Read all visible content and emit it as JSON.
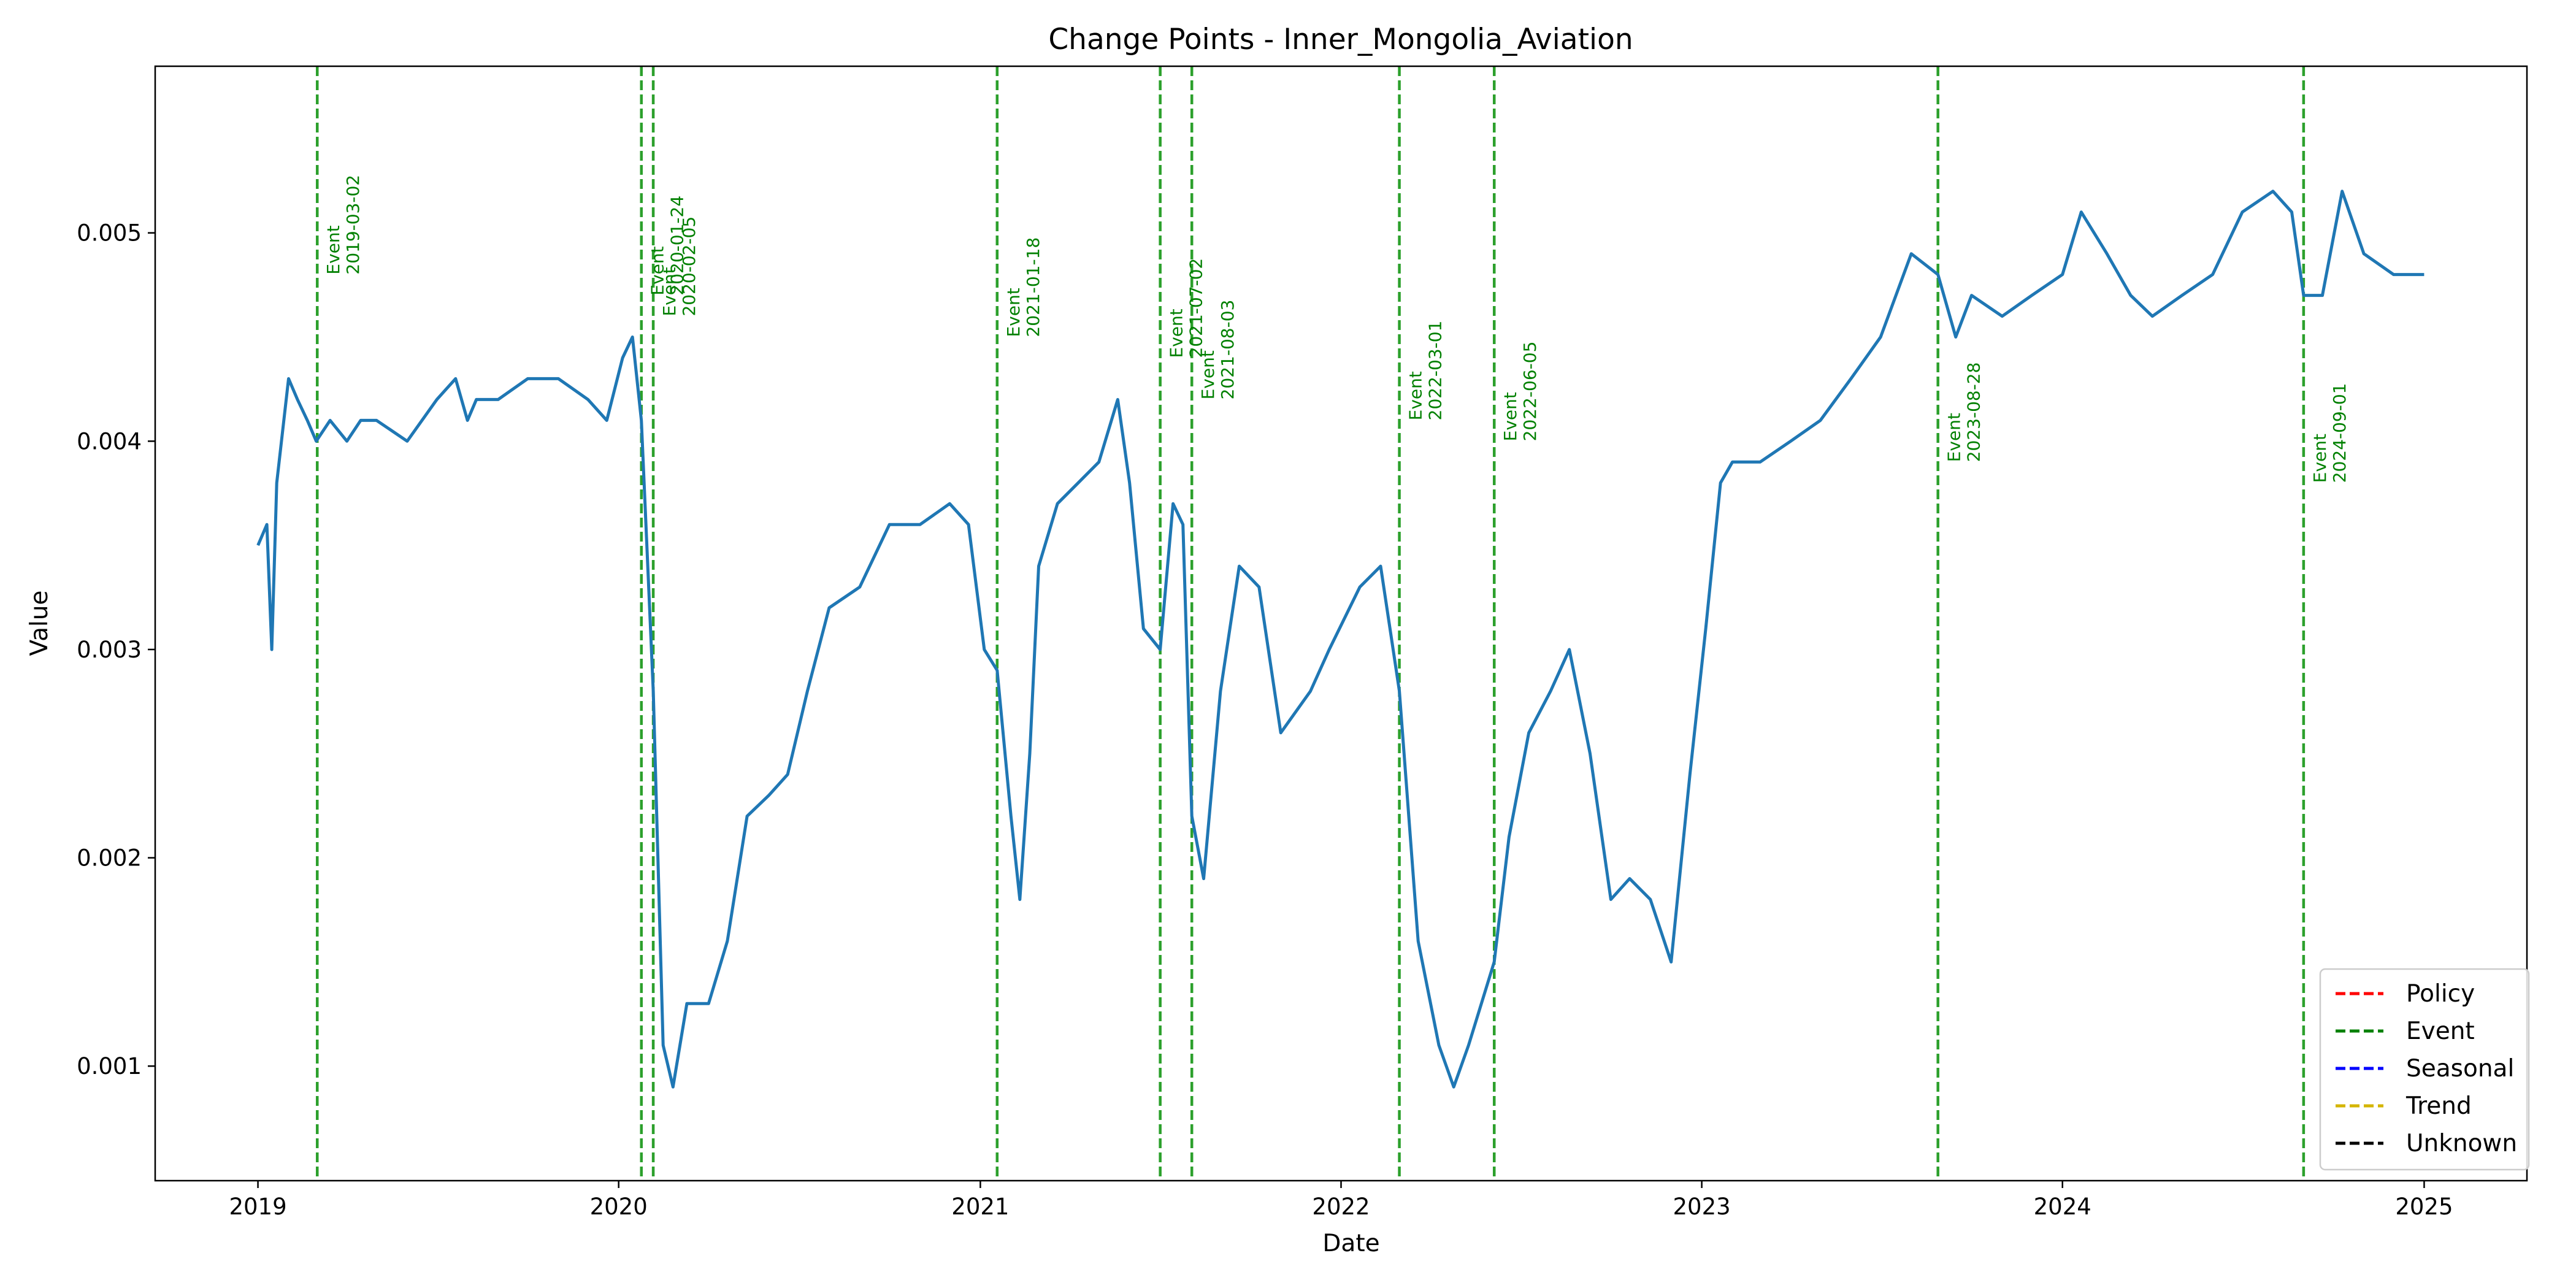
{
  "chart_data": {
    "type": "line",
    "title": "Change Points - Inner_Mongolia_Aviation",
    "xlabel": "Date",
    "ylabel": "Value",
    "xlim": [
      "2018-09-19",
      "2025-04-15"
    ],
    "ylim": [
      0.00045,
      0.0058
    ],
    "x_ticks": [
      "2019-01-01",
      "2020-01-01",
      "2021-01-01",
      "2022-01-01",
      "2023-01-01",
      "2024-01-01",
      "2025-01-01"
    ],
    "x_tick_labels": [
      "2019",
      "2020",
      "2021",
      "2022",
      "2023",
      "2024",
      "2025"
    ],
    "y_ticks": [
      0.001,
      0.002,
      0.003,
      0.004,
      0.005
    ],
    "y_tick_labels": [
      "0.001",
      "0.002",
      "0.003",
      "0.004",
      "0.005"
    ],
    "grid": false,
    "series": [
      {
        "color": "#1f77b4",
        "x": [
          "2019-01-01",
          "2019-01-10",
          "2019-01-15",
          "2019-01-20",
          "2019-02-01",
          "2019-02-10",
          "2019-02-20",
          "2019-03-01",
          "2019-03-15",
          "2019-04-01",
          "2019-04-15",
          "2019-05-01",
          "2019-06-01",
          "2019-07-01",
          "2019-07-20",
          "2019-08-01",
          "2019-08-10",
          "2019-09-01",
          "2019-10-01",
          "2019-11-01",
          "2019-12-01",
          "2019-12-20",
          "2020-01-05",
          "2020-01-15",
          "2020-01-24",
          "2020-02-05",
          "2020-02-15",
          "2020-02-25",
          "2020-03-10",
          "2020-04-01",
          "2020-04-20",
          "2020-05-10",
          "2020-06-01",
          "2020-06-20",
          "2020-07-10",
          "2020-08-01",
          "2020-09-01",
          "2020-10-01",
          "2020-11-01",
          "2020-12-01",
          "2020-12-20",
          "2021-01-05",
          "2021-01-18",
          "2021-02-01",
          "2021-02-10",
          "2021-02-20",
          "2021-03-01",
          "2021-03-20",
          "2021-04-10",
          "2021-05-01",
          "2021-05-20",
          "2021-06-01",
          "2021-06-15",
          "2021-07-02",
          "2021-07-15",
          "2021-07-25",
          "2021-08-03",
          "2021-08-15",
          "2021-09-01",
          "2021-09-20",
          "2021-10-10",
          "2021-11-01",
          "2021-12-01",
          "2021-12-20",
          "2022-01-20",
          "2022-02-10",
          "2022-03-01",
          "2022-03-20",
          "2022-04-10",
          "2022-04-25",
          "2022-05-10",
          "2022-06-05",
          "2022-06-20",
          "2022-07-10",
          "2022-08-01",
          "2022-08-20",
          "2022-09-10",
          "2022-10-01",
          "2022-10-20",
          "2022-11-10",
          "2022-12-01",
          "2022-12-20",
          "2023-01-05",
          "2023-01-20",
          "2023-02-01",
          "2023-03-01",
          "2023-04-01",
          "2023-05-01",
          "2023-06-01",
          "2023-07-01",
          "2023-08-01",
          "2023-08-28",
          "2023-09-15",
          "2023-10-01",
          "2023-11-01",
          "2023-12-01",
          "2024-01-01",
          "2024-01-20",
          "2024-02-15",
          "2024-03-10",
          "2024-04-01",
          "2024-05-01",
          "2024-06-01",
          "2024-07-01",
          "2024-08-01",
          "2024-08-20",
          "2024-09-01",
          "2024-09-20",
          "2024-10-10",
          "2024-11-01",
          "2024-12-01",
          "2025-01-01"
        ],
        "y": [
          0.0035,
          0.0036,
          0.003,
          0.0038,
          0.0043,
          0.0042,
          0.0041,
          0.004,
          0.0041,
          0.004,
          0.0041,
          0.0041,
          0.004,
          0.0042,
          0.0043,
          0.0041,
          0.0042,
          0.0042,
          0.0043,
          0.0043,
          0.0042,
          0.0041,
          0.0044,
          0.0045,
          0.0041,
          0.0028,
          0.0011,
          0.0009,
          0.0013,
          0.0013,
          0.0016,
          0.0022,
          0.0023,
          0.0024,
          0.0028,
          0.0032,
          0.0033,
          0.0036,
          0.0036,
          0.0037,
          0.0036,
          0.003,
          0.0029,
          0.0022,
          0.0018,
          0.0025,
          0.0034,
          0.0037,
          0.0038,
          0.0039,
          0.0042,
          0.0038,
          0.0031,
          0.003,
          0.0037,
          0.0036,
          0.0022,
          0.0019,
          0.0028,
          0.0034,
          0.0033,
          0.0026,
          0.0028,
          0.003,
          0.0033,
          0.0034,
          0.0028,
          0.0016,
          0.0011,
          0.0009,
          0.0011,
          0.0015,
          0.0021,
          0.0026,
          0.0028,
          0.003,
          0.0025,
          0.0018,
          0.0019,
          0.0018,
          0.0015,
          0.0024,
          0.0031,
          0.0038,
          0.0039,
          0.0039,
          0.004,
          0.0041,
          0.0043,
          0.0045,
          0.0049,
          0.0048,
          0.0045,
          0.0047,
          0.0046,
          0.0047,
          0.0048,
          0.0051,
          0.0049,
          0.0047,
          0.0046,
          0.0047,
          0.0048,
          0.0051,
          0.0052,
          0.0051,
          0.0047,
          0.0047,
          0.0052,
          0.0049,
          0.0048,
          0.0048
        ]
      }
    ],
    "change_points": [
      {
        "date": "2019-03-02",
        "type": "Event",
        "label_top": "Event",
        "label_bottom": "2019-03-02",
        "label_y": 0.0048
      },
      {
        "date": "2020-01-24",
        "type": "Event",
        "label_top": "Event",
        "label_bottom": "2020-01-24",
        "label_y": 0.0047
      },
      {
        "date": "2020-02-05",
        "type": "Event",
        "label_top": "Event",
        "label_bottom": "2020-02-05",
        "label_y": 0.0046
      },
      {
        "date": "2021-01-18",
        "type": "Event",
        "label_top": "Event",
        "label_bottom": "2021-01-18",
        "label_y": 0.0045
      },
      {
        "date": "2021-07-02",
        "type": "Event",
        "label_top": "Event",
        "label_bottom": "2021-07-02",
        "label_y": 0.0044
      },
      {
        "date": "2021-08-03",
        "type": "Event",
        "label_top": "Event",
        "label_bottom": "2021-08-03",
        "label_y": 0.0042
      },
      {
        "date": "2022-03-01",
        "type": "Event",
        "label_top": "Event",
        "label_bottom": "2022-03-01",
        "label_y": 0.0041
      },
      {
        "date": "2022-06-05",
        "type": "Event",
        "label_top": "Event",
        "label_bottom": "2022-06-05",
        "label_y": 0.004
      },
      {
        "date": "2023-08-28",
        "type": "Event",
        "label_top": "Event",
        "label_bottom": "2023-08-28",
        "label_y": 0.0039
      },
      {
        "date": "2024-09-01",
        "type": "Event",
        "label_top": "Event",
        "label_bottom": "2024-09-01",
        "label_y": 0.0038
      }
    ],
    "change_point_color": "#2ca02c",
    "change_point_text_color": "#008000",
    "legend": {
      "placement": "lower-right",
      "entries": [
        {
          "label": "Policy",
          "color": "#ff0000"
        },
        {
          "label": "Event",
          "color": "#008000"
        },
        {
          "label": "Seasonal",
          "color": "#0000ff"
        },
        {
          "label": "Trend",
          "color": "#d4b500"
        },
        {
          "label": "Unknown",
          "color": "#000000"
        }
      ]
    }
  }
}
